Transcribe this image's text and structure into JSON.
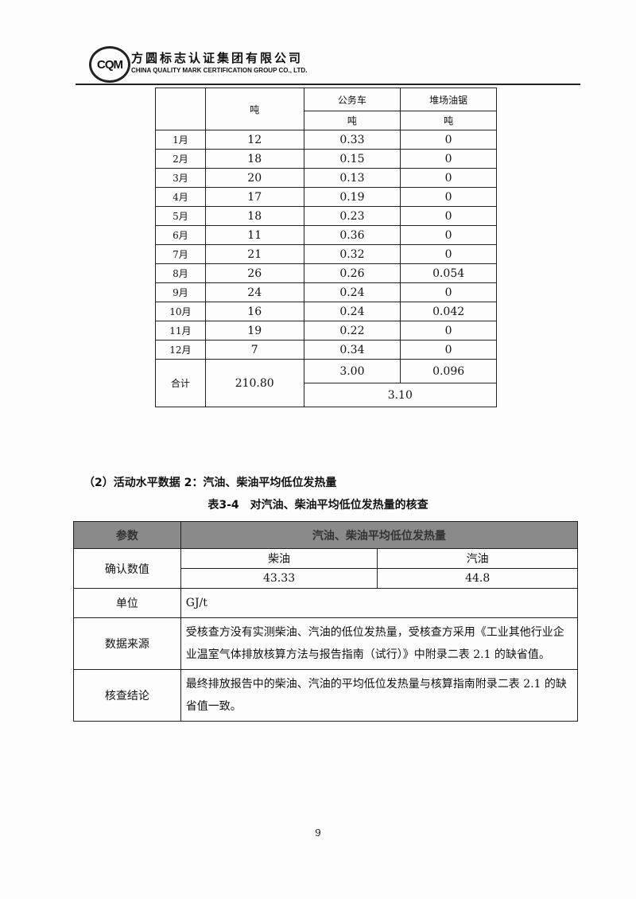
{
  "header": {
    "logo_text": "CQM",
    "company_cn": "方圆标志认证集团有限公司",
    "company_en": "CHINA QUALITY MARK CERTIFICATION GROUP CO., LTD."
  },
  "table1": {
    "col1_unit": "吨",
    "col2_head": "公务车",
    "col2_unit": "吨",
    "col3_head": "堆场油锯",
    "col3_unit": "吨",
    "rows": [
      {
        "m": "1月",
        "a": "12",
        "b": "0.33",
        "c": "0"
      },
      {
        "m": "2月",
        "a": "18",
        "b": "0.15",
        "c": "0"
      },
      {
        "m": "3月",
        "a": "20",
        "b": "0.13",
        "c": "0"
      },
      {
        "m": "4月",
        "a": "17",
        "b": "0.19",
        "c": "0"
      },
      {
        "m": "5月",
        "a": "18",
        "b": "0.23",
        "c": "0"
      },
      {
        "m": "6月",
        "a": "11",
        "b": "0.36",
        "c": "0"
      },
      {
        "m": "7月",
        "a": "21",
        "b": "0.32",
        "c": "0"
      },
      {
        "m": "8月",
        "a": "26",
        "b": "0.26",
        "c": "0.054"
      },
      {
        "m": "9月",
        "a": "24",
        "b": "0.24",
        "c": "0"
      },
      {
        "m": "10月",
        "a": "16",
        "b": "0.24",
        "c": "0.042"
      },
      {
        "m": "11月",
        "a": "19",
        "b": "0.22",
        "c": "0"
      },
      {
        "m": "12月",
        "a": "7",
        "b": "0.34",
        "c": "0"
      }
    ],
    "total_label": "合计",
    "total_a": "210.80",
    "total_b": "3.00",
    "total_c": "0.096",
    "total_bc": "3.10"
  },
  "section_heading": "（2）活动水平数据 2：汽油、柴油平均低位发热量",
  "table2": {
    "caption": "表3-4　对汽油、柴油平均低位发热量的核查",
    "head1": "参数",
    "head2": "汽油、柴油平均低位发热量",
    "confirm_label": "确认数值",
    "diesel": "柴油",
    "gasoline": "汽油",
    "diesel_val": "43.33",
    "gasoline_val": "44.8",
    "unit_label": "单位",
    "unit": "GJ/t",
    "source_label": "数据来源",
    "source": "受核查方没有实测柴油、汽油的低位发热量，受核查方采用《工业其他行业企业温室气体排放核算方法与报告指南（试行）》中附录二表 2.1 的缺省值。",
    "conclusion_label": "核查结论",
    "conclusion": "最终排放报告中的柴油、汽油的平均低位发热量与核算指南附录二表 2.1 的缺省值一致。"
  },
  "page_number": "9"
}
